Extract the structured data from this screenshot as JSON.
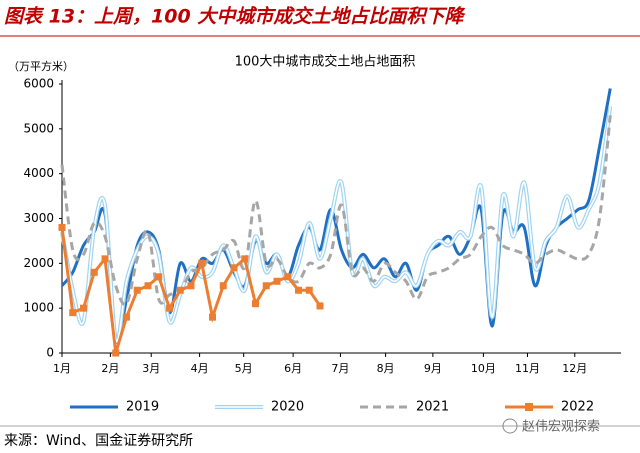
{
  "chart_data": {
    "type": "line",
    "header": "图表 13：上周，100 大中城市成交土地占比面积下降",
    "title": "100大中城市成交土地占地面积",
    "y_label": "（万平方米）",
    "source": "来源：Wind、国金证券研究所",
    "watermark": "赵伟宏观探索",
    "x": [
      0,
      1,
      2,
      3,
      4,
      5,
      6,
      7,
      8,
      9,
      10,
      11,
      12,
      13,
      14,
      15,
      16,
      17,
      18,
      19,
      20,
      21,
      22,
      23,
      24,
      25,
      26,
      27,
      28,
      29,
      30,
      31,
      32,
      33,
      34,
      35,
      36,
      37,
      38,
      39,
      40,
      41,
      42,
      43,
      44,
      45,
      46,
      47,
      48,
      49,
      50,
      51
    ],
    "xlim": [
      0,
      52
    ],
    "xticks": [
      {
        "value": 0,
        "label": "1月"
      },
      {
        "value": 4.5,
        "label": "2月"
      },
      {
        "value": 8.3,
        "label": "3月"
      },
      {
        "value": 12.8,
        "label": "4月"
      },
      {
        "value": 16.9,
        "label": "5月"
      },
      {
        "value": 21.5,
        "label": "6月"
      },
      {
        "value": 25.9,
        "label": "7月"
      },
      {
        "value": 30.1,
        "label": "8月"
      },
      {
        "value": 34.5,
        "label": "9月"
      },
      {
        "value": 39.2,
        "label": "10月"
      },
      {
        "value": 43.3,
        "label": "11月"
      },
      {
        "value": 47.7,
        "label": "12月"
      }
    ],
    "ylim": [
      0,
      6000
    ],
    "yticks": [
      0,
      1000,
      2000,
      3000,
      4000,
      5000,
      6000
    ],
    "legend": "bottom",
    "series": [
      {
        "name": "2019",
        "color": "#1f6fc4",
        "style": "solid",
        "values": [
          1500,
          1800,
          2400,
          2700,
          3100,
          300,
          1200,
          2400,
          2700,
          2300,
          900,
          2000,
          1600,
          2100,
          2000,
          2300,
          1800,
          1500,
          2500,
          2000,
          2200,
          1700,
          2400,
          2800,
          2300,
          3200,
          2300,
          1900,
          2200,
          1900,
          2100,
          1700,
          2000,
          1400,
          2200,
          2400,
          2600,
          2200,
          2600,
          3200,
          600,
          3100,
          2700,
          2800,
          1500,
          2400,
          2800,
          3000,
          3200,
          3400,
          4600,
          5900
        ]
      },
      {
        "name": "2020",
        "color": "#9fd4f2",
        "style": "double",
        "values": [
          2700,
          1400,
          700,
          2800,
          3300,
          300,
          1600,
          2300,
          2600,
          2200,
          700,
          1300,
          1900,
          1700,
          1800,
          2400,
          1900,
          1400,
          2600,
          1800,
          2200,
          1600,
          2000,
          2900,
          2100,
          3000,
          3800,
          1800,
          2100,
          1500,
          1700,
          1600,
          1800,
          1500,
          2200,
          2500,
          2400,
          2700,
          2600,
          3700,
          800,
          3500,
          2600,
          3800,
          1900,
          2500,
          2800,
          3500,
          2800,
          3200,
          3800,
          5500
        ]
      },
      {
        "name": "2021",
        "color": "#a6a6a6",
        "style": "dashed",
        "values": [
          4200,
          2300,
          2200,
          2900,
          2600,
          1500,
          1100,
          2100,
          2700,
          1200,
          1300,
          1400,
          1800,
          1900,
          2200,
          2300,
          2500,
          1900,
          3400,
          2000,
          2100,
          1700,
          1600,
          2000,
          1900,
          2200,
          3300,
          1800,
          1900,
          1600,
          2000,
          1800,
          1600,
          1200,
          1700,
          1800,
          1900,
          2100,
          2200,
          2600,
          2800,
          2400,
          2300,
          2200,
          2000,
          2200,
          2300,
          2200,
          2100,
          2200,
          3000,
          5300
        ]
      },
      {
        "name": "2022",
        "color": "#ed7d31",
        "style": "marker",
        "values": [
          2800,
          900,
          1000,
          1800,
          2100,
          0,
          800,
          1400,
          1500,
          1700,
          1000,
          1400,
          1500,
          2000,
          800,
          1500,
          1900,
          2100,
          1100,
          1500,
          1600,
          1700,
          1400,
          1400,
          1050,
          null,
          null,
          null,
          null,
          null,
          null,
          null,
          null,
          null,
          null,
          null,
          null,
          null,
          null,
          null,
          null,
          null,
          null,
          null,
          null,
          null,
          null,
          null,
          null,
          null,
          null,
          null
        ]
      }
    ]
  }
}
